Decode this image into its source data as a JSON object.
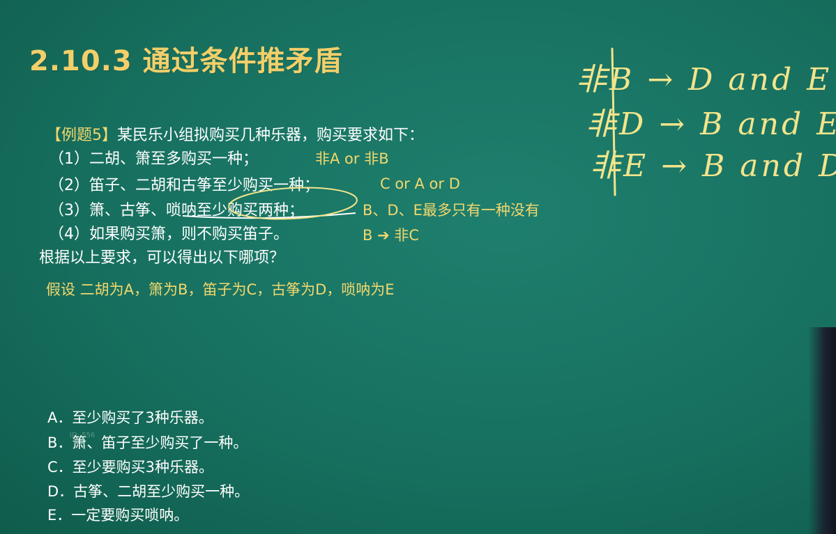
{
  "title": "2.10.3 通过条件推矛盾",
  "question": {
    "tag": "【例题5】",
    "stem": "某民乐小组拟购买几种乐器，购买要求如下：",
    "conditions": [
      {
        "text": "（1）二胡、箫至多购买一种；",
        "note": "非A or 非B"
      },
      {
        "text": "（2）笛子、二胡和古筝至少购买一种；",
        "note": "C or A or D"
      },
      {
        "text": "（3）箫、古筝、唢呐至少购买两种；",
        "note": "B、D、E最多只有一种没有"
      },
      {
        "text": "（4）如果购买箫，则不购买笛子。",
        "note": "B ➔ 非C"
      }
    ],
    "ask": "根据以上要求，可以得出以下哪项？",
    "assumption": "假设  二胡为A，箫为B，笛子为C，古筝为D，唢呐为E"
  },
  "options": [
    "A．至少购买了3种乐器。",
    "B．箫、笛子至少购买了一种。",
    "C．至少要购买3种乐器。",
    "D．古筝、二胡至少购买一种。",
    "E．一定要购买唢呐。"
  ],
  "handwriting": [
    "非B → D and E",
    "非D → B and E",
    "非E → B and D"
  ],
  "watermark": "ID: 556",
  "colors": {
    "board": "#17705f",
    "title": "#f2cf6a",
    "note": "#f2d86e",
    "text": "#ffffff"
  }
}
